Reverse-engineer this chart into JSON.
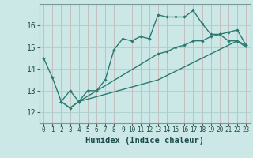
{
  "xlabel": "Humidex (Indice chaleur)",
  "background_color": "#cce8e6",
  "grid_color": "#aacfcd",
  "line_color": "#2a7a72",
  "xlim": [
    -0.5,
    23.5
  ],
  "ylim": [
    11.5,
    17.0
  ],
  "yticks": [
    12,
    13,
    14,
    15,
    16
  ],
  "xticks": [
    0,
    1,
    2,
    3,
    4,
    5,
    6,
    7,
    8,
    9,
    10,
    11,
    12,
    13,
    14,
    15,
    16,
    17,
    18,
    19,
    20,
    21,
    22,
    23
  ],
  "series1_x": [
    0,
    1,
    2,
    3,
    4,
    5,
    6,
    7,
    8,
    9,
    10,
    11,
    12,
    13,
    14,
    15,
    16,
    17,
    18,
    19,
    20,
    21,
    22,
    23
  ],
  "series1_y": [
    14.5,
    13.6,
    12.5,
    13.0,
    12.5,
    13.0,
    13.0,
    13.5,
    14.9,
    15.4,
    15.3,
    15.5,
    15.4,
    16.5,
    16.4,
    16.4,
    16.4,
    16.7,
    16.1,
    15.6,
    15.6,
    15.3,
    15.3,
    15.1
  ],
  "series2_x": [
    2,
    3,
    4,
    13,
    14,
    15,
    16,
    17,
    18,
    19,
    20,
    21,
    22,
    23
  ],
  "series2_y": [
    12.5,
    12.2,
    12.5,
    14.7,
    14.8,
    15.0,
    15.1,
    15.3,
    15.3,
    15.5,
    15.6,
    15.7,
    15.8,
    15.1
  ],
  "series3_x": [
    2,
    3,
    4,
    13,
    14,
    15,
    16,
    17,
    18,
    19,
    20,
    21,
    22,
    23
  ],
  "series3_y": [
    12.5,
    12.2,
    12.5,
    13.5,
    13.7,
    13.9,
    14.1,
    14.3,
    14.5,
    14.7,
    14.9,
    15.1,
    15.3,
    15.0
  ]
}
